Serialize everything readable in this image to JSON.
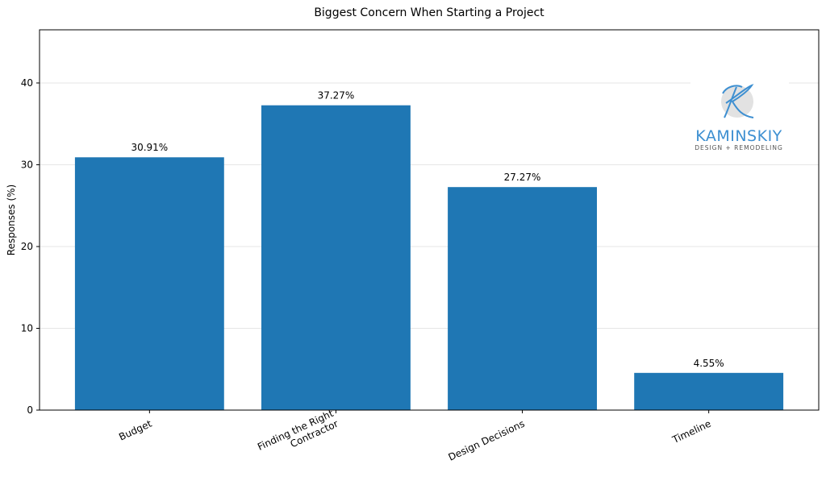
{
  "chart_data": {
    "type": "bar",
    "title": "Biggest Concern When Starting a Project",
    "xlabel": "",
    "ylabel": "Responses (%)",
    "categories": [
      "Budget",
      "Finding the Right\nContractor",
      "Design Decisions",
      "Timeline"
    ],
    "values": [
      30.91,
      37.27,
      27.27,
      4.55
    ],
    "data_labels": [
      "30.91%",
      "37.27%",
      "27.27%",
      "4.55%"
    ],
    "ylim": [
      0,
      46.5
    ],
    "yticks": [
      0,
      10,
      20,
      30,
      40
    ],
    "grid": "horizontal",
    "bar_color": "#1f77b4"
  },
  "logo": {
    "brand": "KAMINSKIY",
    "tagline": "DESIGN + REMODELING",
    "color": "#3d8fd1"
  }
}
